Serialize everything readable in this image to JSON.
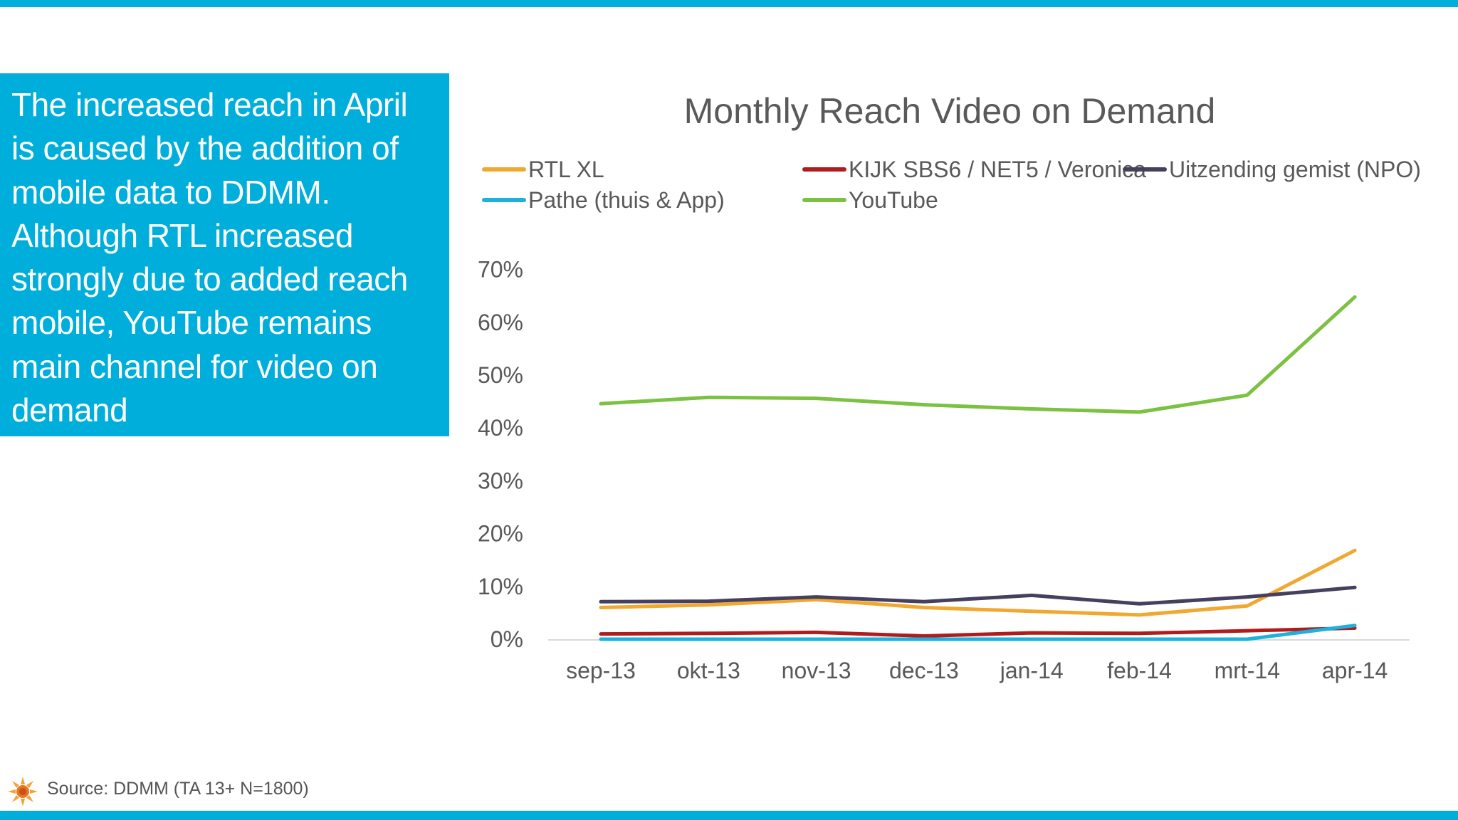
{
  "callout": {
    "text": "The increased reach in April is caused by the addition of mobile data to DDMM. Although RTL increased strongly due to added reach mobile, YouTube remains main channel for video on demand"
  },
  "footer": {
    "source": "Source: DDMM (TA 13+ N=1800)"
  },
  "colors": {
    "accent": "#00aedb",
    "rtl_xl": "#f0a830",
    "kijk": "#b01c1c",
    "uitzending_gemist": "#463f5e",
    "pathe": "#1fb1de",
    "youtube": "#7bc142"
  },
  "chart_data": {
    "type": "line",
    "title": "Monthly Reach Video on Demand",
    "xlabel": "",
    "ylabel": "",
    "categories": [
      "sep-13",
      "okt-13",
      "nov-13",
      "dec-13",
      "jan-14",
      "feb-14",
      "mrt-14",
      "apr-14"
    ],
    "ylim": [
      0,
      70
    ],
    "yticks": [
      0,
      10,
      20,
      30,
      40,
      50,
      60,
      70
    ],
    "ytick_labels": [
      "0%",
      "10%",
      "20%",
      "30%",
      "40%",
      "50%",
      "60%",
      "70%"
    ],
    "grid": false,
    "legend_position": "top",
    "series": [
      {
        "name": "RTL XL",
        "color": "#f0a830",
        "values": [
          6.0,
          6.5,
          7.5,
          6.0,
          5.3,
          4.6,
          6.3,
          16.8
        ]
      },
      {
        "name": "KIJK SBS6 / NET5 / Veronica",
        "color": "#b01c1c",
        "values": [
          1.0,
          1.1,
          1.3,
          0.6,
          1.2,
          1.1,
          1.6,
          2.1
        ]
      },
      {
        "name": "Uitzending gemist (NPO)",
        "color": "#463f5e",
        "values": [
          7.1,
          7.2,
          8.0,
          7.1,
          8.3,
          6.7,
          8.0,
          9.8
        ]
      },
      {
        "name": "Pathe (thuis & App)",
        "color": "#1fb1de",
        "values": [
          0.0,
          0.0,
          0.0,
          0.0,
          0.0,
          0.0,
          0.0,
          2.6
        ]
      },
      {
        "name": "YouTube",
        "color": "#7bc142",
        "values": [
          44.6,
          45.8,
          45.6,
          44.4,
          43.6,
          43.0,
          46.2,
          64.8
        ]
      }
    ]
  }
}
